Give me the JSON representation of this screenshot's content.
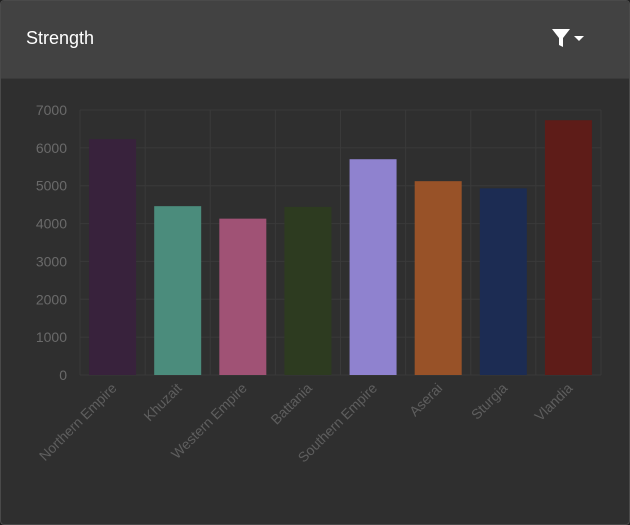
{
  "header": {
    "title": "Strength",
    "filter_icon": "filter-icon",
    "dropdown_icon": "caret-down-icon"
  },
  "colors": {
    "header_bg": "#424242",
    "panel_bg": "#2f2f2f",
    "grid": "#3a3a3a",
    "tick_text": "#6a6a6a"
  },
  "chart_data": {
    "type": "bar",
    "categories": [
      "Northern Empire",
      "Khuzait",
      "Western Empire",
      "Battania",
      "Southern Empire",
      "Aserai",
      "Sturgia",
      "Vlandia"
    ],
    "values": [
      6230,
      4460,
      4130,
      4440,
      5700,
      5120,
      4930,
      6730
    ],
    "colors": [
      "#38223c",
      "#4b8c7c",
      "#a05275",
      "#2d3b20",
      "#8f82cf",
      "#985228",
      "#1c2c53",
      "#5e1c18"
    ],
    "yticks": [
      0,
      1000,
      2000,
      3000,
      4000,
      5000,
      6000,
      7000
    ],
    "ylim": [
      0,
      7000
    ],
    "grid": true,
    "legend": "none"
  }
}
